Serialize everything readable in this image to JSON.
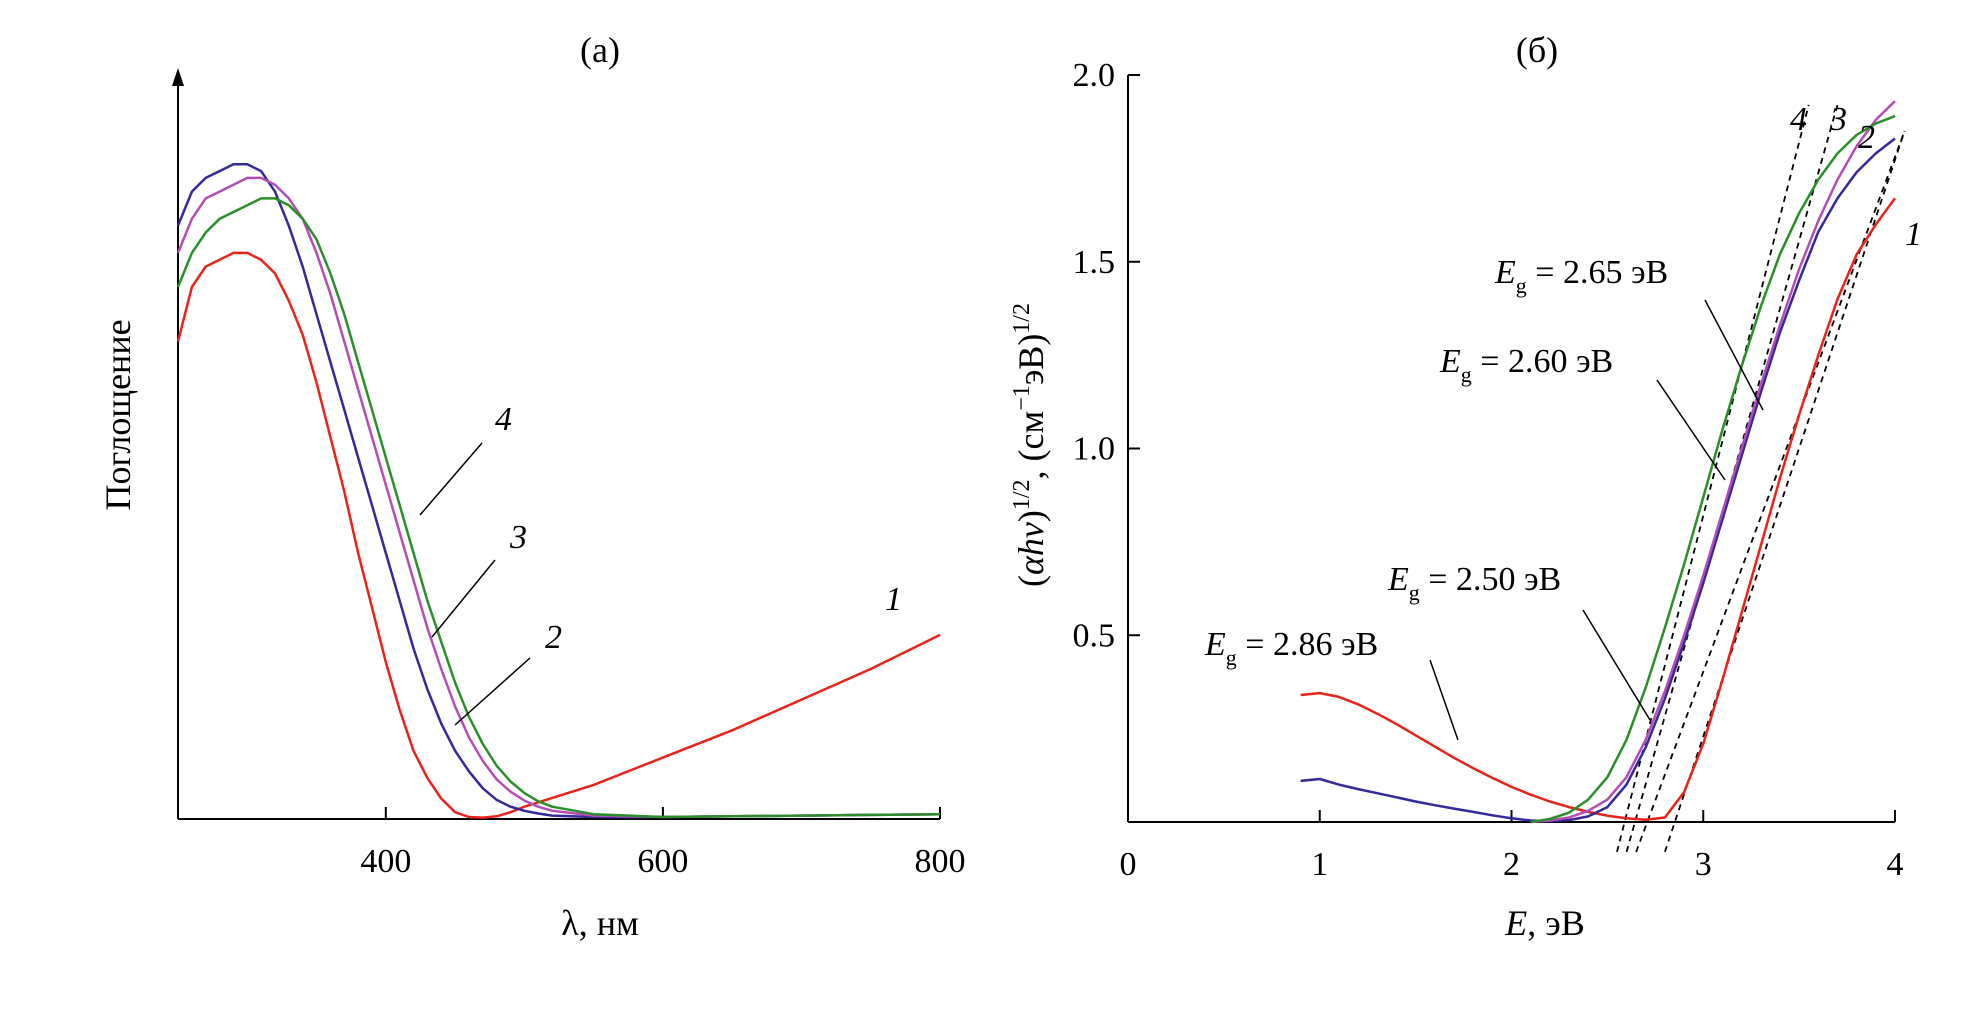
{
  "chart_data": [
    {
      "type": "line",
      "panel_label": "(а)",
      "xlabel": "λ, нм",
      "ylabel": "Поглощение",
      "xlim": [
        250,
        800
      ],
      "ylim": [
        0,
        1.0
      ],
      "x_ticks": [
        400,
        600,
        800
      ],
      "y_ticks": [],
      "grid": false,
      "legend": "inline curve numbers",
      "series": [
        {
          "name": "1",
          "color": "#e8231c",
          "x": [
            250,
            260,
            270,
            280,
            290,
            300,
            310,
            320,
            330,
            340,
            350,
            360,
            370,
            380,
            390,
            400,
            410,
            420,
            430,
            440,
            450,
            460,
            470,
            480,
            490,
            500,
            550,
            600,
            650,
            700,
            750,
            800
          ],
          "y": [
            0.7,
            0.78,
            0.81,
            0.82,
            0.83,
            0.83,
            0.82,
            0.8,
            0.76,
            0.71,
            0.64,
            0.56,
            0.48,
            0.39,
            0.31,
            0.23,
            0.16,
            0.1,
            0.06,
            0.03,
            0.01,
            0.003,
            0.002,
            0.004,
            0.01,
            0.018,
            0.05,
            0.09,
            0.13,
            0.175,
            0.22,
            0.27
          ]
        },
        {
          "name": "2",
          "color": "#33299a",
          "x": [
            250,
            260,
            270,
            280,
            290,
            300,
            310,
            320,
            330,
            340,
            350,
            360,
            370,
            380,
            390,
            400,
            410,
            420,
            430,
            440,
            450,
            460,
            470,
            480,
            490,
            500,
            510,
            520,
            550,
            600,
            650,
            700,
            750,
            800
          ],
          "y": [
            0.87,
            0.92,
            0.94,
            0.95,
            0.96,
            0.96,
            0.95,
            0.92,
            0.87,
            0.81,
            0.74,
            0.67,
            0.6,
            0.53,
            0.46,
            0.39,
            0.32,
            0.25,
            0.19,
            0.14,
            0.1,
            0.07,
            0.045,
            0.028,
            0.018,
            0.012,
            0.008,
            0.005,
            0.003,
            0.003,
            0.004,
            0.005,
            0.006,
            0.007
          ]
        },
        {
          "name": "3",
          "color": "#b44db4",
          "x": [
            250,
            260,
            270,
            280,
            290,
            300,
            310,
            320,
            330,
            340,
            350,
            360,
            370,
            380,
            390,
            400,
            410,
            420,
            430,
            440,
            450,
            460,
            470,
            480,
            490,
            500,
            510,
            520,
            550,
            600,
            650,
            700,
            750,
            800
          ],
          "y": [
            0.83,
            0.88,
            0.91,
            0.92,
            0.93,
            0.94,
            0.94,
            0.93,
            0.91,
            0.88,
            0.83,
            0.77,
            0.7,
            0.63,
            0.56,
            0.49,
            0.42,
            0.35,
            0.28,
            0.22,
            0.165,
            0.12,
            0.085,
            0.058,
            0.04,
            0.027,
            0.018,
            0.012,
            0.005,
            0.003,
            0.004,
            0.005,
            0.006,
            0.007
          ]
        },
        {
          "name": "4",
          "color": "#2a8f2a",
          "x": [
            250,
            260,
            270,
            280,
            290,
            300,
            310,
            320,
            330,
            340,
            350,
            360,
            370,
            380,
            390,
            400,
            410,
            420,
            430,
            440,
            450,
            460,
            470,
            480,
            490,
            500,
            510,
            520,
            550,
            600,
            650,
            700,
            750,
            800
          ],
          "y": [
            0.78,
            0.83,
            0.86,
            0.88,
            0.89,
            0.9,
            0.91,
            0.91,
            0.9,
            0.88,
            0.85,
            0.8,
            0.74,
            0.67,
            0.6,
            0.53,
            0.46,
            0.39,
            0.32,
            0.26,
            0.2,
            0.15,
            0.11,
            0.078,
            0.055,
            0.038,
            0.026,
            0.018,
            0.007,
            0.003,
            0.004,
            0.005,
            0.006,
            0.007
          ]
        }
      ],
      "annotations": [
        {
          "text": "1",
          "series": "1"
        },
        {
          "text": "2",
          "series": "2"
        },
        {
          "text": "3",
          "series": "3"
        },
        {
          "text": "4",
          "series": "4"
        }
      ]
    },
    {
      "type": "line",
      "panel_label": "(б)",
      "xlabel": "E, эВ",
      "ylabel": "(αhν)^1/2, (см^−1эВ)^1/2",
      "xlim": [
        0,
        4
      ],
      "ylim": [
        0,
        2.0
      ],
      "x_ticks": [
        0,
        1,
        2,
        3,
        4
      ],
      "y_ticks": [
        0.5,
        1.0,
        1.5,
        2.0
      ],
      "y_tick_labels": [
        "0.5",
        "1.0",
        "1.5",
        "2.0"
      ],
      "grid": false,
      "legend": "inline curve numbers",
      "series": [
        {
          "name": "1",
          "color": "#e8231c",
          "x": [
            0.9,
            1.0,
            1.1,
            1.2,
            1.3,
            1.4,
            1.5,
            1.6,
            1.7,
            1.8,
            1.9,
            2.0,
            2.1,
            2.2,
            2.3,
            2.4,
            2.5,
            2.6,
            2.7,
            2.8,
            2.9,
            3.0,
            3.1,
            3.2,
            3.3,
            3.4,
            3.5,
            3.6,
            3.7,
            3.8,
            3.9,
            4.0
          ],
          "y": [
            0.34,
            0.345,
            0.335,
            0.315,
            0.29,
            0.262,
            0.232,
            0.202,
            0.172,
            0.144,
            0.118,
            0.094,
            0.073,
            0.055,
            0.04,
            0.027,
            0.017,
            0.01,
            0.006,
            0.012,
            0.08,
            0.21,
            0.38,
            0.56,
            0.74,
            0.92,
            1.09,
            1.25,
            1.4,
            1.52,
            1.6,
            1.67
          ]
        },
        {
          "name": "2",
          "color": "#33299a",
          "x": [
            0.9,
            1.0,
            1.1,
            1.2,
            1.3,
            1.4,
            1.5,
            1.6,
            1.7,
            1.8,
            1.9,
            2.0,
            2.1,
            2.2,
            2.3,
            2.4,
            2.5,
            2.6,
            2.7,
            2.8,
            2.9,
            3.0,
            3.1,
            3.2,
            3.3,
            3.4,
            3.5,
            3.6,
            3.7,
            3.8,
            3.9,
            4.0
          ],
          "y": [
            0.11,
            0.115,
            0.1,
            0.088,
            0.077,
            0.066,
            0.055,
            0.045,
            0.036,
            0.027,
            0.018,
            0.01,
            0.004,
            0.002,
            0.005,
            0.015,
            0.04,
            0.1,
            0.2,
            0.33,
            0.48,
            0.64,
            0.81,
            0.98,
            1.15,
            1.31,
            1.45,
            1.58,
            1.67,
            1.74,
            1.79,
            1.83
          ]
        },
        {
          "name": "3",
          "color": "#b44db4",
          "x": [
            2.1,
            2.2,
            2.3,
            2.4,
            2.5,
            2.6,
            2.7,
            2.8,
            2.9,
            3.0,
            3.1,
            3.2,
            3.3,
            3.4,
            3.5,
            3.6,
            3.7,
            3.8,
            3.9,
            4.0
          ],
          "y": [
            0.0,
            0.004,
            0.012,
            0.03,
            0.06,
            0.12,
            0.22,
            0.35,
            0.5,
            0.66,
            0.83,
            1.0,
            1.17,
            1.33,
            1.48,
            1.61,
            1.72,
            1.81,
            1.88,
            1.93
          ]
        },
        {
          "name": "4",
          "color": "#2a8f2a",
          "x": [
            2.1,
            2.2,
            2.3,
            2.4,
            2.5,
            2.6,
            2.7,
            2.8,
            2.9,
            3.0,
            3.1,
            3.2,
            3.3,
            3.4,
            3.5,
            3.6,
            3.7,
            3.8,
            3.9,
            4.0
          ],
          "y": [
            0.0,
            0.008,
            0.025,
            0.06,
            0.12,
            0.22,
            0.36,
            0.52,
            0.69,
            0.87,
            1.05,
            1.22,
            1.38,
            1.52,
            1.63,
            1.72,
            1.79,
            1.84,
            1.87,
            1.89
          ]
        }
      ],
      "tangent_lines": [
        {
          "series": "1",
          "x": [
            2.8,
            4.05
          ],
          "y": [
            -0.08,
            1.85
          ]
        },
        {
          "series": "2",
          "x": [
            2.65,
            4.05
          ],
          "y": [
            -0.08,
            1.85
          ]
        },
        {
          "series": "3",
          "x": [
            2.6,
            3.7
          ],
          "y": [
            -0.08,
            1.92
          ]
        },
        {
          "series": "4",
          "x": [
            2.55,
            3.55
          ],
          "y": [
            -0.08,
            1.92
          ]
        }
      ],
      "curve_labels": [
        "1",
        "2",
        "3",
        "4"
      ],
      "annotations": [
        {
          "prefix": "E",
          "subscript": "g",
          "value": " = 2.86 эВ"
        },
        {
          "prefix": "E",
          "subscript": "g",
          "value": " = 2.50 эВ"
        },
        {
          "prefix": "E",
          "subscript": "g",
          "value": " = 2.60 эВ"
        },
        {
          "prefix": "E",
          "subscript": "g",
          "value": " = 2.65 эВ"
        }
      ]
    }
  ]
}
